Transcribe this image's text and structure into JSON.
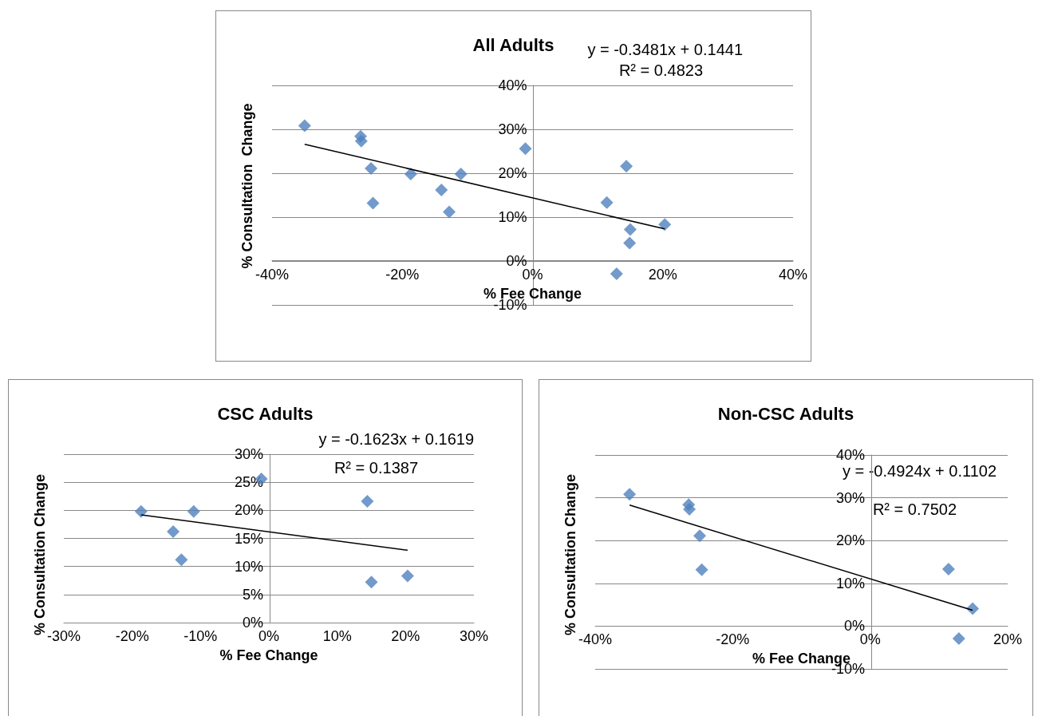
{
  "chart_data": [
    {
      "type": "scatter",
      "title": "All Adults",
      "xlabel": "% Fee Change",
      "ylabel": "% Consultation  Change",
      "xlim": [
        -40,
        40
      ],
      "xticks": [
        {
          "value": -40,
          "label": "-40%"
        },
        {
          "value": -20,
          "label": "-20%"
        },
        {
          "value": 0,
          "label": "0%"
        },
        {
          "value": 20,
          "label": "20%"
        },
        {
          "value": 40,
          "label": "40%"
        }
      ],
      "ylim": [
        -10,
        40
      ],
      "yticks": [
        {
          "value": -10,
          "label": "-10%"
        },
        {
          "value": 0,
          "label": "0%"
        },
        {
          "value": 10,
          "label": "10%"
        },
        {
          "value": 20,
          "label": "20%"
        },
        {
          "value": 30,
          "label": "30%"
        },
        {
          "value": 40,
          "label": "40%"
        }
      ],
      "grid": "y",
      "marker": "diamond",
      "annotations": [
        "y = -0.3481x + 0.1441",
        "R² = 0.4823"
      ],
      "series": [
        {
          "type": "scatter",
          "color": "#4f81bd",
          "x": [
            -35,
            -26.4,
            -26.3,
            -24.8,
            -24.5,
            -18.7,
            -14,
            -11,
            -12.8,
            -1.1,
            11.4,
            14.4,
            15,
            14.9,
            20.3,
            12.9
          ],
          "values": [
            30.8,
            28.4,
            27.3,
            21.1,
            13.2,
            19.8,
            16.2,
            19.8,
            11.2,
            25.6,
            13.3,
            21.6,
            7.2,
            4.1,
            8.3,
            -2.9
          ]
        },
        {
          "type": "line",
          "color": "#000000",
          "marker": "none",
          "x": [
            -35,
            20.3
          ],
          "values": [
            26.6,
            7.3
          ]
        }
      ]
    },
    {
      "type": "scatter",
      "title": "CSC Adults",
      "xlabel": "% Fee Change",
      "ylabel": "% Consultation Change",
      "xlim": [
        -30,
        30
      ],
      "xticks": [
        {
          "value": -30,
          "label": "-30%"
        },
        {
          "value": -20,
          "label": "-20%"
        },
        {
          "value": -10,
          "label": "-10%"
        },
        {
          "value": 0,
          "label": "0%"
        },
        {
          "value": 10,
          "label": "10%"
        },
        {
          "value": 20,
          "label": "20%"
        },
        {
          "value": 30,
          "label": "30%"
        }
      ],
      "ylim": [
        0,
        30
      ],
      "yticks": [
        {
          "value": 0,
          "label": "0%"
        },
        {
          "value": 5,
          "label": "5%"
        },
        {
          "value": 10,
          "label": "10%"
        },
        {
          "value": 15,
          "label": "15%"
        },
        {
          "value": 20,
          "label": "20%"
        },
        {
          "value": 25,
          "label": "25%"
        },
        {
          "value": 30,
          "label": "30%"
        }
      ],
      "grid": "y",
      "marker": "diamond",
      "annotations": [
        "y = -0.1623x + 0.1619",
        "R² = 0.1387"
      ],
      "series": [
        {
          "type": "scatter",
          "color": "#4f81bd",
          "x": [
            -18.7,
            -14,
            -11,
            -12.8,
            -1.1,
            14.4,
            15,
            20.3
          ],
          "values": [
            19.8,
            16.2,
            19.8,
            11.2,
            25.6,
            21.6,
            7.2,
            8.3
          ]
        },
        {
          "type": "line",
          "color": "#000000",
          "marker": "none",
          "x": [
            -18.7,
            20.3
          ],
          "values": [
            19.2,
            12.9
          ]
        }
      ]
    },
    {
      "type": "scatter",
      "title": "Non-CSC Adults",
      "xlabel": "% Fee Change",
      "ylabel": "% Consultation Change",
      "xlim": [
        -40,
        20
      ],
      "xticks": [
        {
          "value": -40,
          "label": "-40%"
        },
        {
          "value": -20,
          "label": "-20%"
        },
        {
          "value": 0,
          "label": "0%"
        },
        {
          "value": 20,
          "label": "20%"
        }
      ],
      "ylim": [
        -10,
        40
      ],
      "yticks": [
        {
          "value": -10,
          "label": "-10%"
        },
        {
          "value": 0,
          "label": "0%"
        },
        {
          "value": 10,
          "label": "10%"
        },
        {
          "value": 20,
          "label": "20%"
        },
        {
          "value": 30,
          "label": "30%"
        },
        {
          "value": 40,
          "label": "40%"
        }
      ],
      "grid": "y",
      "marker": "diamond",
      "annotations": [
        "y = -0.4924x + 0.1102",
        "R² = 0.7502"
      ],
      "series": [
        {
          "type": "scatter",
          "color": "#4f81bd",
          "x": [
            -35,
            -26.4,
            -26.3,
            -24.8,
            -24.5,
            11.4,
            14.9,
            12.9
          ],
          "values": [
            30.8,
            28.4,
            27.3,
            21.1,
            13.2,
            13.3,
            4.1,
            -2.9
          ]
        },
        {
          "type": "line",
          "color": "#000000",
          "marker": "none",
          "x": [
            -35,
            14.9
          ],
          "values": [
            28.3,
            3.7
          ]
        }
      ]
    }
  ]
}
